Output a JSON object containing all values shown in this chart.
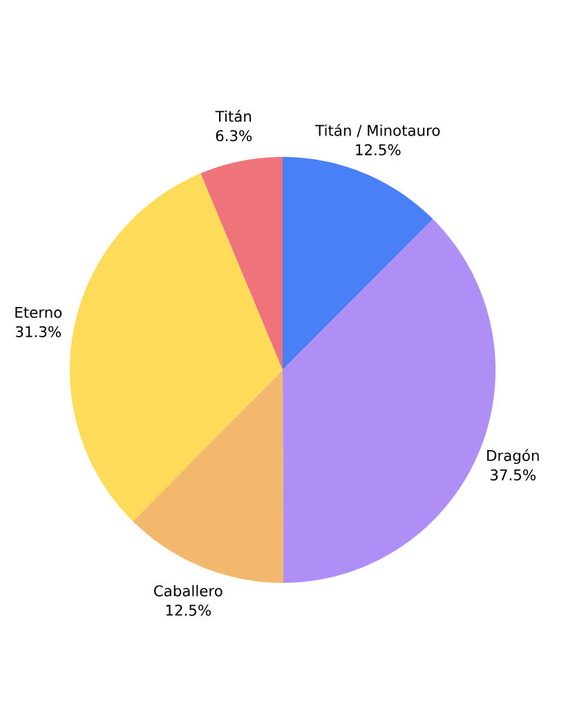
{
  "chart_data": {
    "type": "pie",
    "categories": [
      "Titán / Minotauro",
      "Dragón",
      "Caballero",
      "Eterno",
      "Titán"
    ],
    "values": [
      12.5,
      37.5,
      12.5,
      31.3,
      6.3
    ],
    "value_labels": [
      "12.5%",
      "37.5%",
      "12.5%",
      "31.3%",
      "6.3%"
    ],
    "colors": [
      "#4a80f7",
      "#af8ef5",
      "#f2b86c",
      "#fedc5a",
      "#ee737a"
    ]
  }
}
